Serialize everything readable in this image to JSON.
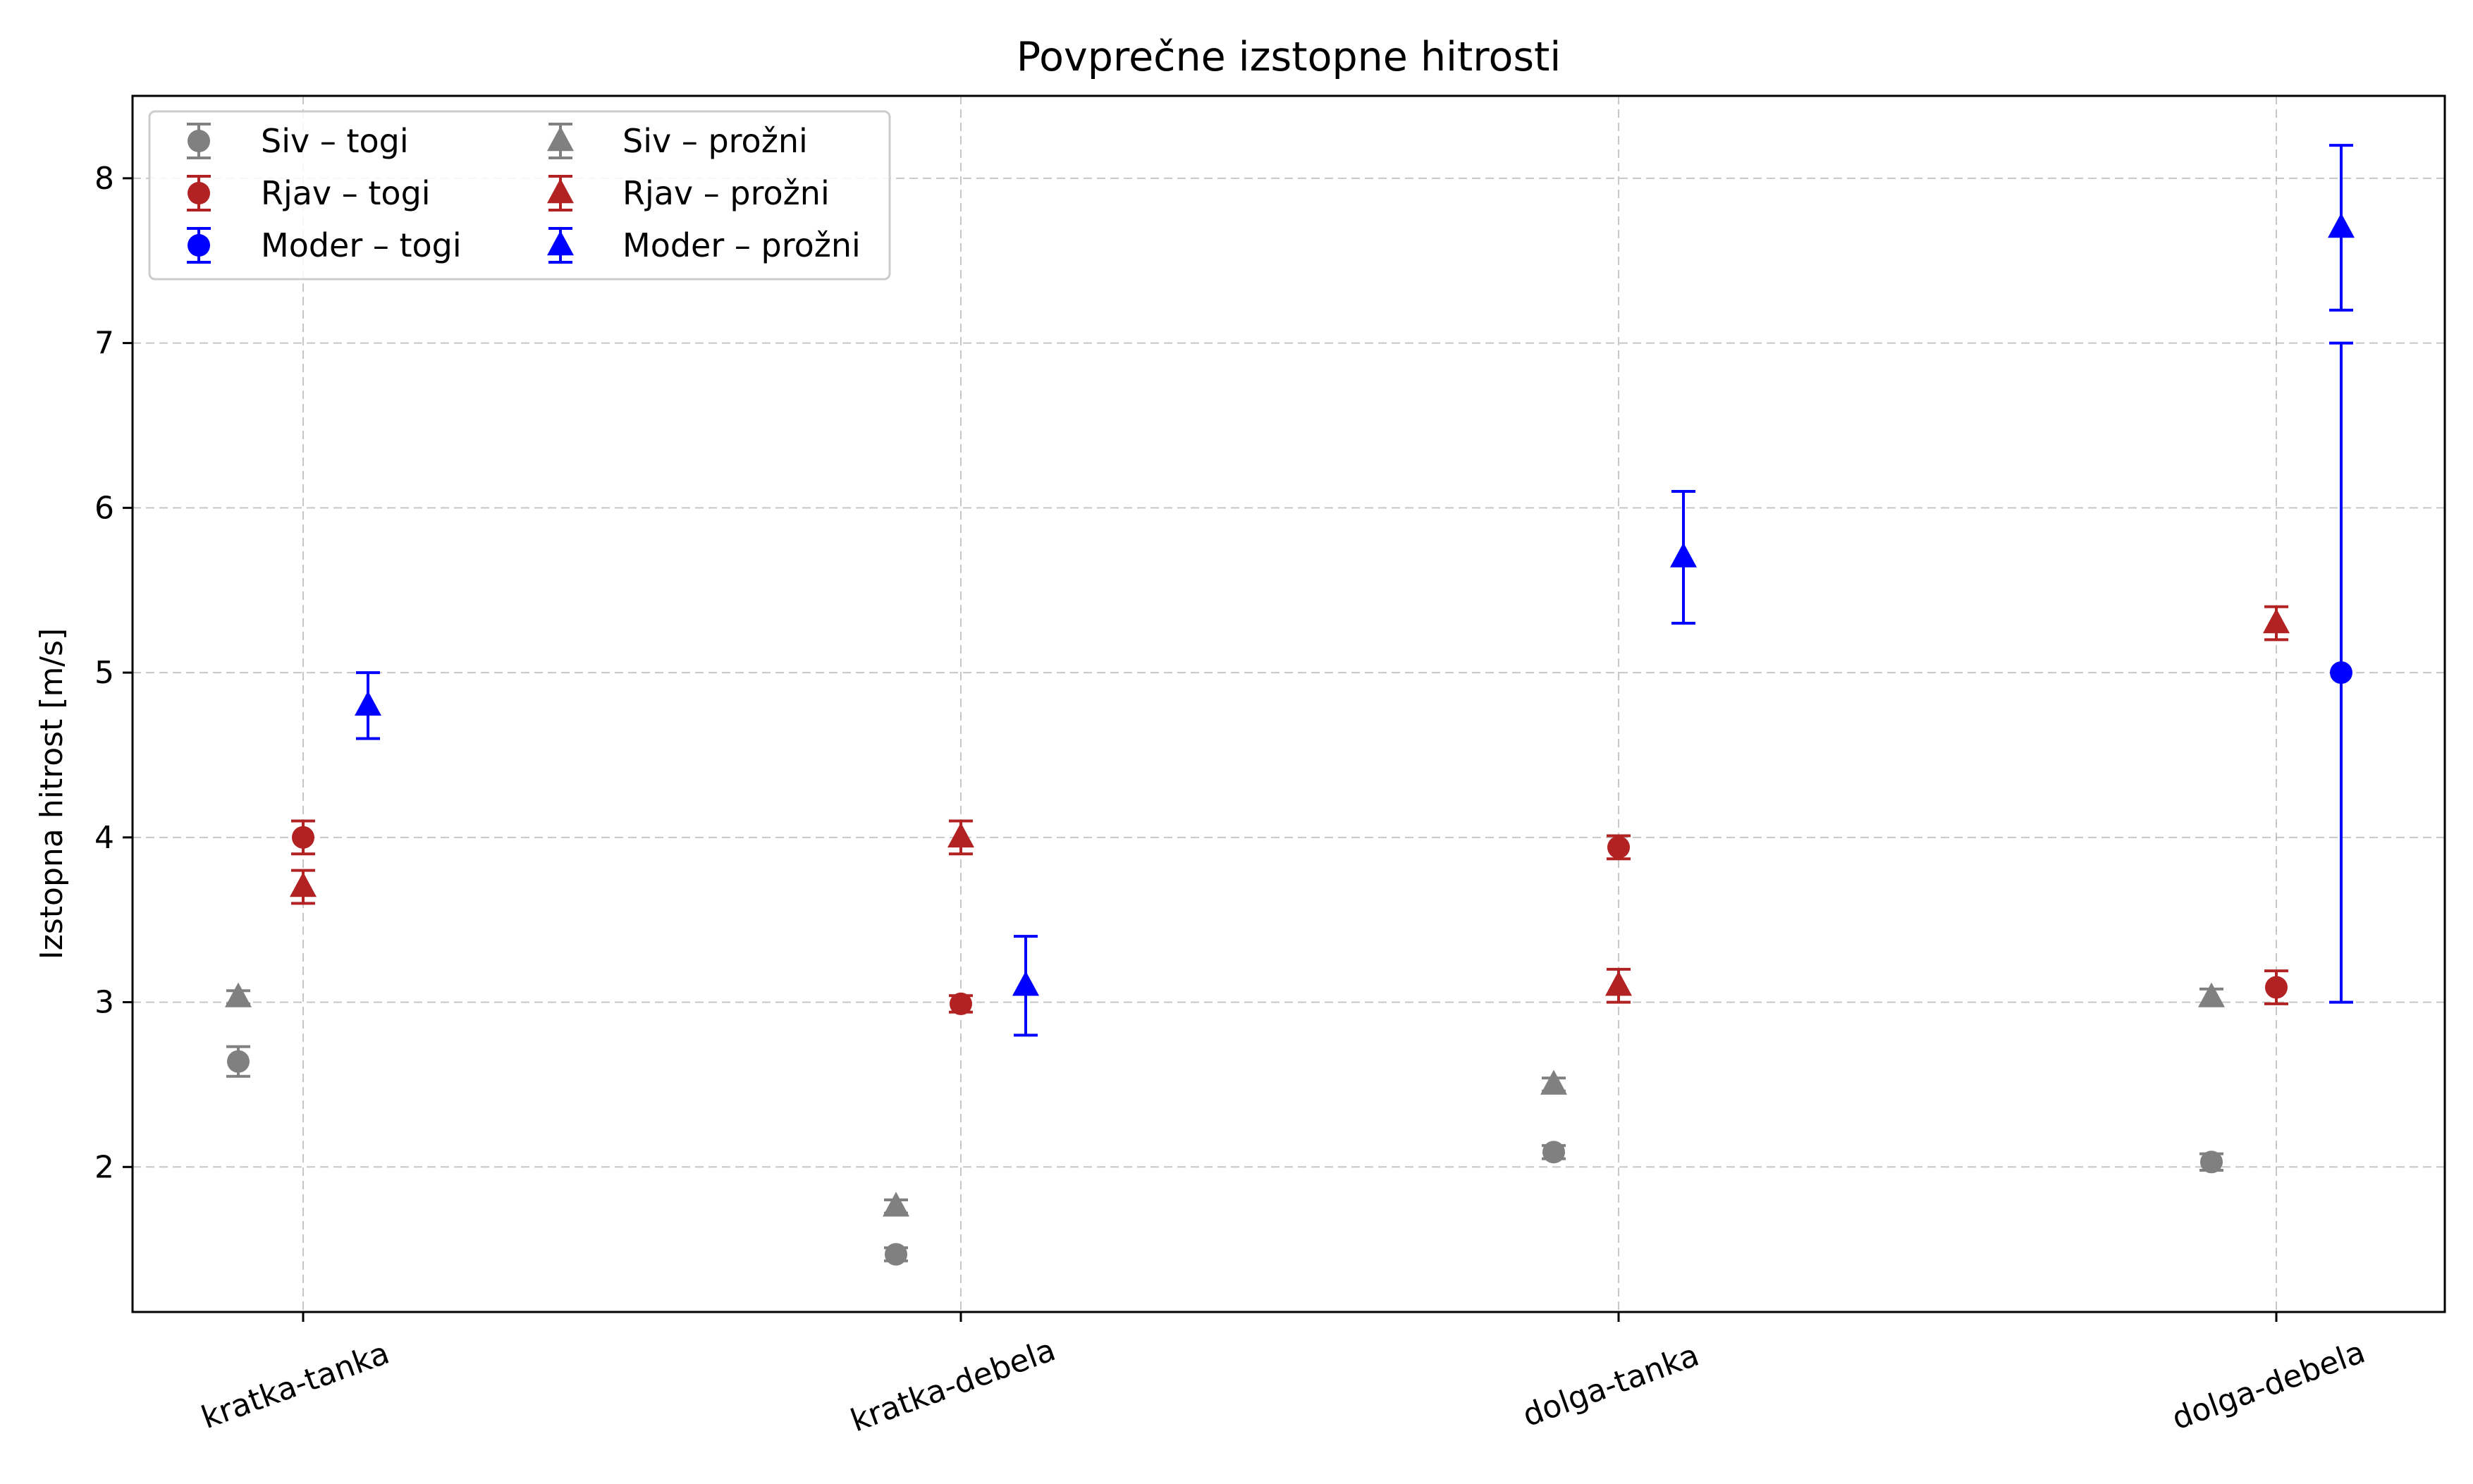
{
  "chart_data": {
    "type": "scatter",
    "title": "Povprečne izstopne hitrosti",
    "xlabel": "",
    "ylabel": "Izstopna hitrost [m/s]",
    "categories": [
      "kratka-tanka",
      "kratka-debela",
      "dolga-tanka",
      "dolga-debela"
    ],
    "ylim": [
      1.12,
      8.5
    ],
    "yticks": [
      2,
      3,
      4,
      5,
      6,
      7,
      8
    ],
    "grid": true,
    "legend_position": "top-left",
    "series": [
      {
        "name": "Siv – togi",
        "color": "#808080",
        "marker": "circle",
        "offset": -1,
        "values": [
          2.64,
          1.47,
          2.09,
          2.03
        ],
        "errors": [
          0.09,
          0.04,
          0.04,
          0.05
        ]
      },
      {
        "name": "Siv – prožni",
        "color": "#808080",
        "marker": "triangle",
        "offset": -1,
        "values": [
          3.03,
          1.76,
          2.5,
          3.03
        ],
        "errors": [
          0.04,
          0.04,
          0.04,
          0.05
        ]
      },
      {
        "name": "Rjav – togi",
        "color": "#b22222",
        "marker": "circle",
        "offset": 0,
        "values": [
          4.0,
          2.99,
          3.94,
          3.09
        ],
        "errors": [
          0.1,
          0.05,
          0.07,
          0.1
        ]
      },
      {
        "name": "Rjav – prožni",
        "color": "#b22222",
        "marker": "triangle",
        "offset": 0,
        "values": [
          3.7,
          4.0,
          3.1,
          5.3
        ],
        "errors": [
          0.1,
          0.1,
          0.1,
          0.1
        ]
      },
      {
        "name": "Moder – togi",
        "color": "#0000ff",
        "marker": "circle",
        "offset": 1,
        "values": [
          null,
          null,
          null,
          5.0
        ],
        "errors": [
          null,
          null,
          null,
          2.0
        ]
      },
      {
        "name": "Moder – prožni",
        "color": "#0000ff",
        "marker": "triangle",
        "offset": 1,
        "values": [
          4.8,
          3.1,
          5.7,
          7.7
        ],
        "errors": [
          0.2,
          0.3,
          0.4,
          0.5
        ]
      }
    ]
  }
}
